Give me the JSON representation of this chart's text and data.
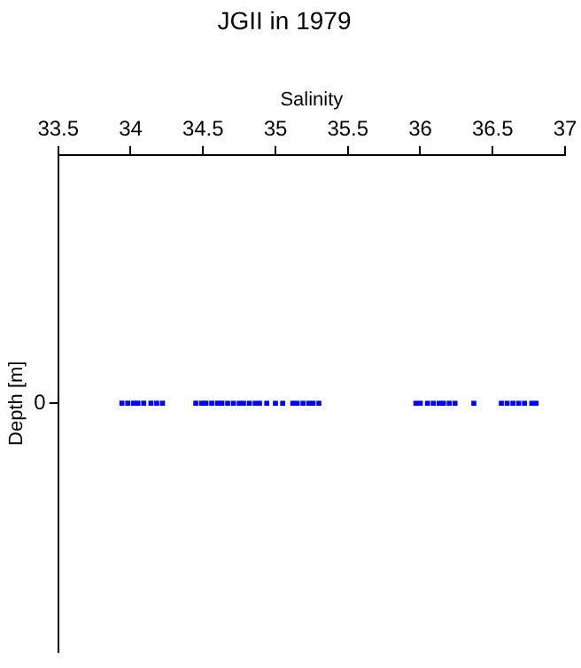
{
  "chart_data": {
    "type": "scatter",
    "title": "JGII in 1979",
    "xlabel": "Salinity",
    "ylabel": "Depth [m]",
    "orientation": "horizontal",
    "xlim": [
      33.5,
      37
    ],
    "xticks": [
      33.5,
      34,
      34.5,
      35,
      35.5,
      36,
      36.5,
      37
    ],
    "categories": [
      "0"
    ],
    "grid": false,
    "marker": "square",
    "series": [
      {
        "color": "#0000ff",
        "x": [
          "0",
          "0",
          "0",
          "0",
          "0",
          "0",
          "0",
          "0",
          "0",
          "0",
          "0",
          "0",
          "0",
          "0",
          "0",
          "0",
          "0",
          "0",
          "0",
          "0",
          "0",
          "0",
          "0",
          "0",
          "0",
          "0",
          "0",
          "0",
          "0",
          "0",
          "0",
          "0",
          "0",
          "0",
          "0",
          "0",
          "0",
          "0",
          "0",
          "0",
          "0",
          "0",
          "0",
          "0",
          "0",
          "0"
        ],
        "values": [
          33.94,
          33.98,
          34.02,
          34.05,
          34.09,
          34.14,
          34.18,
          34.22,
          34.45,
          34.49,
          34.52,
          34.56,
          34.6,
          34.63,
          34.67,
          34.71,
          34.75,
          34.78,
          34.82,
          34.86,
          34.89,
          34.94,
          35.0,
          35.05,
          35.12,
          35.15,
          35.19,
          35.23,
          35.26,
          35.3,
          35.97,
          36.0,
          36.05,
          36.09,
          36.13,
          36.16,
          36.2,
          36.24,
          36.37,
          36.56,
          36.6,
          36.64,
          36.68,
          36.72,
          36.77,
          36.8
        ]
      }
    ]
  }
}
